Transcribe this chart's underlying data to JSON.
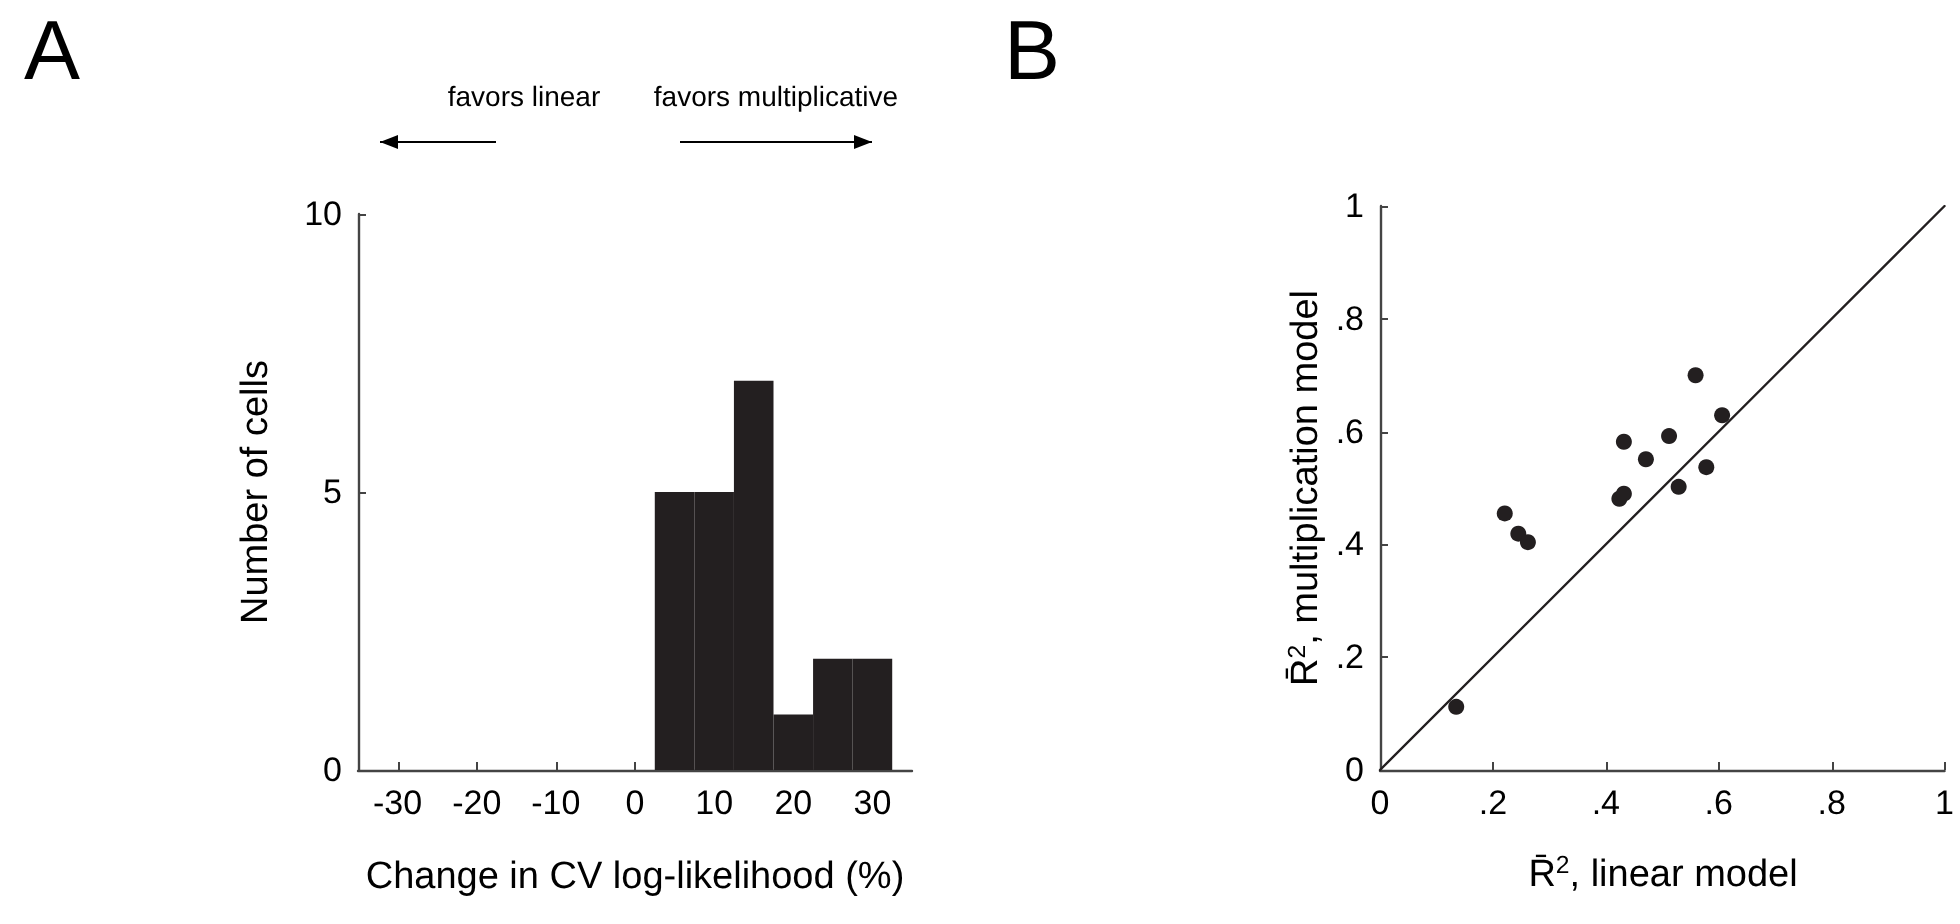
{
  "chart_data": [
    {
      "type": "histogram",
      "title": "A",
      "xlabel": "Change in CV log-likelihood (%)",
      "ylabel": "Number of cells",
      "bins": [
        2.5,
        7.5,
        12.5,
        17.5,
        22.5,
        27.5,
        32.5
      ],
      "values": [
        5,
        5,
        7,
        1,
        2,
        2
      ],
      "color": "#231f20",
      "xlim": [
        -35,
        35
      ],
      "xticks": [
        -30,
        -20,
        -10,
        0,
        10,
        20,
        30
      ],
      "ylim": [
        0,
        10
      ],
      "yticks": [
        0,
        5,
        10
      ],
      "grid": false,
      "annotations": [
        "favors linear",
        "favors multiplicative"
      ]
    },
    {
      "type": "scatter",
      "title": "B",
      "xlabel": "R̄$^{2}$, linear model",
      "ylabel": "R̄$^{2}$, multiplication model",
      "series": [
        {
          "type": "scatter",
          "color": "#231f20",
          "marker": "circle",
          "x": [
            0.135,
            0.221,
            0.245,
            0.262,
            0.424,
            0.432,
            0.432,
            0.471,
            0.512,
            0.529,
            0.559,
            0.578,
            0.606
          ],
          "values": [
            0.112,
            0.455,
            0.419,
            0.404,
            0.481,
            0.49,
            0.582,
            0.551,
            0.592,
            0.502,
            0.7,
            0.537,
            0.629
          ]
        },
        {
          "type": "line",
          "color": "#231f20",
          "marker": "none",
          "x": [
            0,
            1
          ],
          "values": [
            0,
            1
          ]
        }
      ],
      "xlim": [
        0,
        1
      ],
      "xticks": [
        0,
        {
          "value": 0.2,
          "label": ".2"
        },
        {
          "value": 0.4,
          "label": ".4"
        },
        {
          "value": 0.6,
          "label": ".6"
        },
        {
          "value": 0.8,
          "label": ".8"
        },
        1
      ],
      "ylim": [
        0,
        1
      ],
      "yticks": [
        0,
        {
          "value": 0.2,
          "label": ".2"
        },
        {
          "value": 0.4,
          "label": ".4"
        },
        {
          "value": 0.6,
          "label": ".6"
        },
        {
          "value": 0.8,
          "label": ".8"
        },
        1
      ],
      "grid": false
    }
  ]
}
